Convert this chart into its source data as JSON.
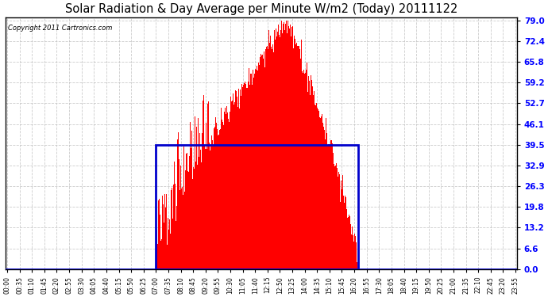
{
  "title": "Solar Radiation & Day Average per Minute W/m2 (Today) 20111122",
  "copyright": "Copyright 2011 Cartronics.com",
  "bg_color": "#ffffff",
  "bar_color": "#ff0000",
  "border_color": "#0000cc",
  "grid_color": "#c0c0c0",
  "ytick_values": [
    0.0,
    6.6,
    13.2,
    19.8,
    26.3,
    32.9,
    39.5,
    46.1,
    52.7,
    59.2,
    65.8,
    72.4,
    79.0
  ],
  "ymax": 79.0,
  "num_minutes": 1440,
  "sunrise_minute": 420,
  "sunset_minute": 990,
  "day_avg_value": 39.5,
  "tick_step_minutes": 35
}
